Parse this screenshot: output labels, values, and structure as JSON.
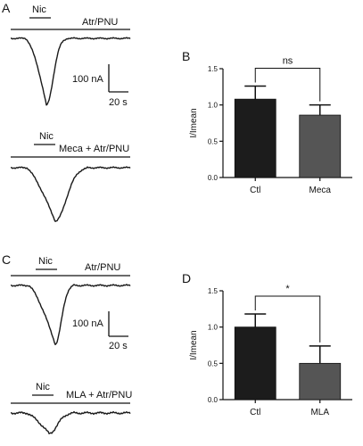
{
  "panels": {
    "A": {
      "letter": "A",
      "trace1": {
        "stim": "Nic",
        "drug": "Atr/PNU"
      },
      "scalebar": {
        "current": "100 nA",
        "time": "20 s"
      },
      "trace2": {
        "stim": "Nic",
        "drug": "Meca + Atr/PNU"
      }
    },
    "B": {
      "letter": "B"
    },
    "C": {
      "letter": "C",
      "trace1": {
        "stim": "Nic",
        "drug": "Atr/PNU"
      },
      "scalebar": {
        "current": "100 nA",
        "time": "20 s"
      },
      "trace2": {
        "stim": "Nic",
        "drug": "MLA + Atr/PNU"
      }
    },
    "D": {
      "letter": "D"
    }
  },
  "chart_data": [
    {
      "panel": "B",
      "type": "bar",
      "ylabel": "I/Imean",
      "ylim": [
        0,
        1.5
      ],
      "yticks": [
        "0.0",
        "0.5",
        "1.0",
        "1.5"
      ],
      "categories": [
        "Ctl",
        "Meca"
      ],
      "values": [
        1.08,
        0.86
      ],
      "errors": [
        0.18,
        0.14
      ],
      "colors": [
        "#1c1c1c",
        "#555555"
      ],
      "significance": "ns"
    },
    {
      "panel": "D",
      "type": "bar",
      "ylabel": "I/Imean",
      "ylim": [
        0,
        1.5
      ],
      "yticks": [
        "0.0",
        "0.5",
        "1.0",
        "1.5"
      ],
      "categories": [
        "Ctl",
        "MLA"
      ],
      "values": [
        1.0,
        0.5
      ],
      "errors": [
        0.18,
        0.24
      ],
      "colors": [
        "#1c1c1c",
        "#555555"
      ],
      "significance": "*"
    }
  ]
}
